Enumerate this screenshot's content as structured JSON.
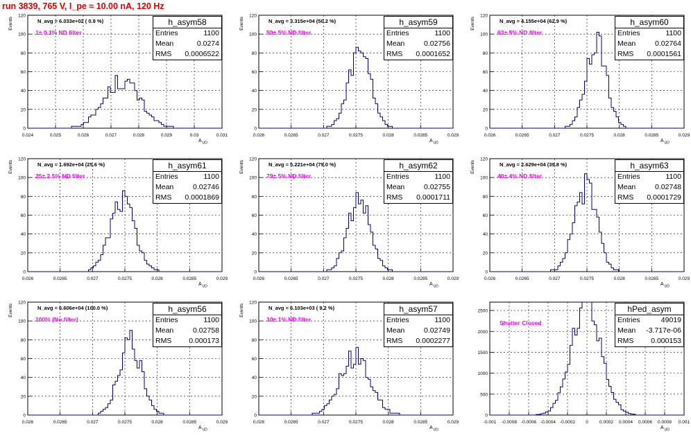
{
  "title": "run 3839,   765 V, I_pe ≈ 10.00 nA, 120 Hz",
  "colors": {
    "title": "#e00000",
    "annotation": "#ff00ff",
    "histogram": "#00007f",
    "grid": "#000000"
  },
  "chart_data": [
    {
      "type": "bar",
      "name": "h_asym58",
      "header": "N_avg = 6.033e+02 ( 0.9 %)",
      "annotation": "1± 0.1% ND filter",
      "stats": {
        "entries": "1100",
        "mean": "0.0274",
        "rms": "0.0006522"
      },
      "xlabel": "A_UD",
      "ylabel": "Events",
      "xlim": [
        0.024,
        0.031
      ],
      "ylim": [
        0,
        120
      ],
      "x_ticks": [
        "0.024",
        "0.025",
        "0.026",
        "0.027",
        "0.028",
        "0.029",
        "0.03",
        "0.031"
      ],
      "y_ticks": [
        "0",
        "20",
        "40",
        "60",
        "80",
        "100",
        "120"
      ],
      "grid": true,
      "mean": 0.0274,
      "sigma": 0.00065,
      "peak": 50
    },
    {
      "type": "bar",
      "name": "h_asym59",
      "header": "N_avg = 3.315e+04 (50.2 %)",
      "annotation": "50± 5% ND filter",
      "stats": {
        "entries": "1100",
        "mean": "0.02756",
        "rms": "0.0001652"
      },
      "xlabel": "A_UD",
      "ylabel": "Events",
      "xlim": [
        0.026,
        0.029
      ],
      "ylim": [
        0,
        120
      ],
      "x_ticks": [
        "0.026",
        "0.0265",
        "0.027",
        "0.0275",
        "0.028",
        "0.0285",
        "0.029"
      ],
      "y_ticks": [
        "0",
        "20",
        "40",
        "60",
        "80",
        "100",
        "120"
      ],
      "grid": true,
      "mean": 0.02756,
      "sigma": 0.000165,
      "peak": 85
    },
    {
      "type": "bar",
      "name": "h_asym60",
      "header": "N_avg = 4.155e+04 (62.9 %)",
      "annotation": "63± 5% ND filter",
      "stats": {
        "entries": "1100",
        "mean": "0.02764",
        "rms": "0.0001561"
      },
      "xlabel": "A_UD",
      "ylabel": "Events",
      "xlim": [
        0.026,
        0.029
      ],
      "ylim": [
        0,
        120
      ],
      "x_ticks": [
        "0.026",
        "0.0265",
        "0.027",
        "0.0275",
        "0.028",
        "0.0285",
        "0.029"
      ],
      "y_ticks": [
        "0",
        "20",
        "40",
        "60",
        "80",
        "100",
        "120"
      ],
      "grid": true,
      "mean": 0.02764,
      "sigma": 0.000156,
      "peak": 95
    },
    {
      "type": "bar",
      "name": "h_asym61",
      "header": "N_avg = 1.692e+04 (25.6 %)",
      "annotation": "25± 2.5% ND filter",
      "stats": {
        "entries": "1100",
        "mean": "0.02746",
        "rms": "0.0001869"
      },
      "xlabel": "A_UD",
      "ylabel": "Events",
      "xlim": [
        0.026,
        0.029
      ],
      "ylim": [
        0,
        120
      ],
      "x_ticks": [
        "0.026",
        "0.0265",
        "0.027",
        "0.0275",
        "0.028",
        "0.0285",
        "0.029"
      ],
      "y_ticks": [
        "0",
        "20",
        "40",
        "60",
        "80",
        "100",
        "120"
      ],
      "grid": true,
      "mean": 0.02746,
      "sigma": 0.000187,
      "peak": 78
    },
    {
      "type": "bar",
      "name": "h_asym62",
      "header": "N_avg = 5.221e+04 (79.0 %)",
      "annotation": "79± 5% ND filter",
      "stats": {
        "entries": "1100",
        "mean": "0.02755",
        "rms": "0.0001711"
      },
      "xlabel": "A_UD",
      "ylabel": "Events",
      "xlim": [
        0.026,
        0.029
      ],
      "ylim": [
        0,
        120
      ],
      "x_ticks": [
        "0.026",
        "0.0265",
        "0.027",
        "0.0275",
        "0.028",
        "0.0285",
        "0.029"
      ],
      "y_ticks": [
        "0",
        "20",
        "40",
        "60",
        "80",
        "100",
        "120"
      ],
      "grid": true,
      "mean": 0.02755,
      "sigma": 0.000171,
      "peak": 78
    },
    {
      "type": "bar",
      "name": "h_asym63",
      "header": "N_avg = 2.629e+04 (39.8 %)",
      "annotation": "40± 4% ND filter",
      "stats": {
        "entries": "1100",
        "mean": "0.02748",
        "rms": "0.0001729"
      },
      "xlabel": "A_UD",
      "ylabel": "Events",
      "xlim": [
        0.026,
        0.029
      ],
      "ylim": [
        0,
        120
      ],
      "x_ticks": [
        "0.026",
        "0.0265",
        "0.027",
        "0.0275",
        "0.028",
        "0.0285",
        "0.029"
      ],
      "y_ticks": [
        "0",
        "20",
        "40",
        "60",
        "80",
        "100",
        "120"
      ],
      "grid": true,
      "mean": 0.02748,
      "sigma": 0.000173,
      "peak": 90
    },
    {
      "type": "bar",
      "name": "h_asym56",
      "header": "N_avg = 6.606e+04 (100.0 %)",
      "annotation": "100% (No filter)",
      "stats": {
        "entries": "1100",
        "mean": "0.02758",
        "rms": "0.000173"
      },
      "xlabel": "A_UD",
      "ylabel": "Events",
      "xlim": [
        0.026,
        0.029
      ],
      "ylim": [
        0,
        120
      ],
      "x_ticks": [
        "0.026",
        "0.0265",
        "0.027",
        "0.0275",
        "0.028",
        "0.0285",
        "0.029"
      ],
      "y_ticks": [
        "0",
        "20",
        "40",
        "60",
        "80",
        "100",
        "120"
      ],
      "grid": true,
      "mean": 0.02758,
      "sigma": 0.000173,
      "peak": 78
    },
    {
      "type": "bar",
      "name": "h_asym57",
      "header": "N_avg = 6.103e+03 ( 9.2 %)",
      "annotation": "10± 1% ND filter",
      "stats": {
        "entries": "1100",
        "mean": "0.02749",
        "rms": "0.0002277"
      },
      "xlabel": "A_UD",
      "ylabel": "Events",
      "xlim": [
        0.026,
        0.029
      ],
      "ylim": [
        0,
        120
      ],
      "x_ticks": [
        "0.026",
        "0.0265",
        "0.027",
        "0.0275",
        "0.028",
        "0.0285",
        "0.029"
      ],
      "y_ticks": [
        "0",
        "20",
        "40",
        "60",
        "80",
        "100",
        "120"
      ],
      "grid": true,
      "mean": 0.02749,
      "sigma": 0.000228,
      "peak": 63
    },
    {
      "type": "bar",
      "name": "hPed_asym",
      "header": "",
      "annotation": "Shutter Closed",
      "stats": {
        "entries": "49019",
        "mean": "-3.717e-06",
        "rms": "0.000153"
      },
      "xlabel": "A_UD",
      "ylabel": "",
      "xlim": [
        -0.001,
        0.001
      ],
      "ylim": [
        0,
        2700
      ],
      "x_ticks": [
        "-0.001",
        "-0.0008",
        "-0.0006",
        "-0.0004",
        "-0.0002",
        "0",
        "0.0002",
        "0.0004",
        "0.0006",
        "0.0008",
        "0.001"
      ],
      "y_ticks": [
        "0",
        "500",
        "1000",
        "1500",
        "2000",
        "2500"
      ],
      "grid": true,
      "mean": -3.717e-06,
      "sigma": 0.000153,
      "peak": 2650
    }
  ],
  "stat_labels": {
    "entries": "Entries",
    "mean": "Mean",
    "rms": "RMS"
  },
  "axis_unit_sub": "UD",
  "axis_unit_main": "A"
}
